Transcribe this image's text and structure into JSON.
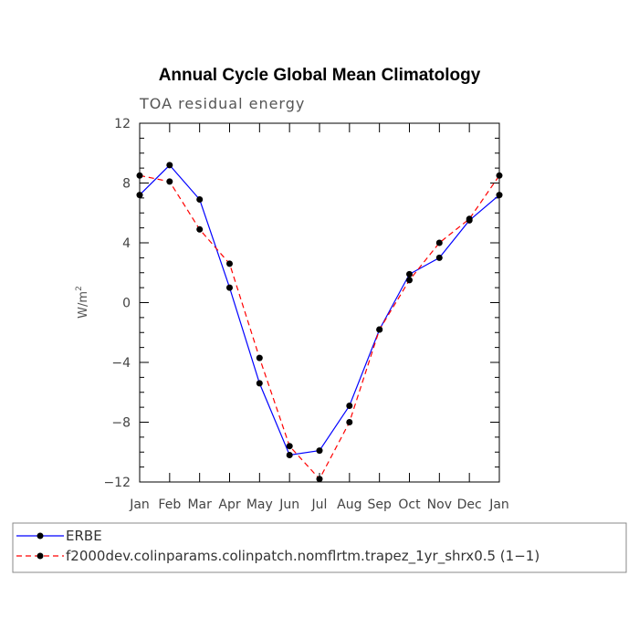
{
  "chart_data": {
    "type": "line",
    "title": "Annual Cycle Global Mean Climatology",
    "subtitle": "TOA residual energy",
    "ylabel": "W/m",
    "ylabel_sup": "2",
    "categories": [
      "Jan",
      "Feb",
      "Mar",
      "Apr",
      "May",
      "Jun",
      "Jul",
      "Aug",
      "Sep",
      "Oct",
      "Nov",
      "Dec",
      "Jan"
    ],
    "ylim": [
      -12,
      12
    ],
    "yticks": [
      12,
      8,
      4,
      0,
      -4,
      -8,
      -12
    ],
    "ytick_labels": [
      "12",
      "8",
      "4",
      "0",
      "−4",
      "−8",
      "−12"
    ],
    "series": [
      {
        "name": "ERBE",
        "color": "#0000ff",
        "dash": "solid",
        "values": [
          7.2,
          9.2,
          6.9,
          1.0,
          -5.4,
          -10.2,
          -9.9,
          -6.9,
          -1.8,
          1.9,
          3.0,
          5.5,
          7.2
        ]
      },
      {
        "name": "f2000dev.colinparams.colinpatch.nomflrtm.trapez_1yr_shrx0.5 (1−1)",
        "color": "#ff0000",
        "dash": "dashed",
        "values": [
          8.5,
          8.1,
          4.9,
          2.6,
          -3.7,
          -9.6,
          -11.8,
          -8.0,
          -1.8,
          1.5,
          4.0,
          5.6,
          8.5
        ]
      }
    ]
  }
}
